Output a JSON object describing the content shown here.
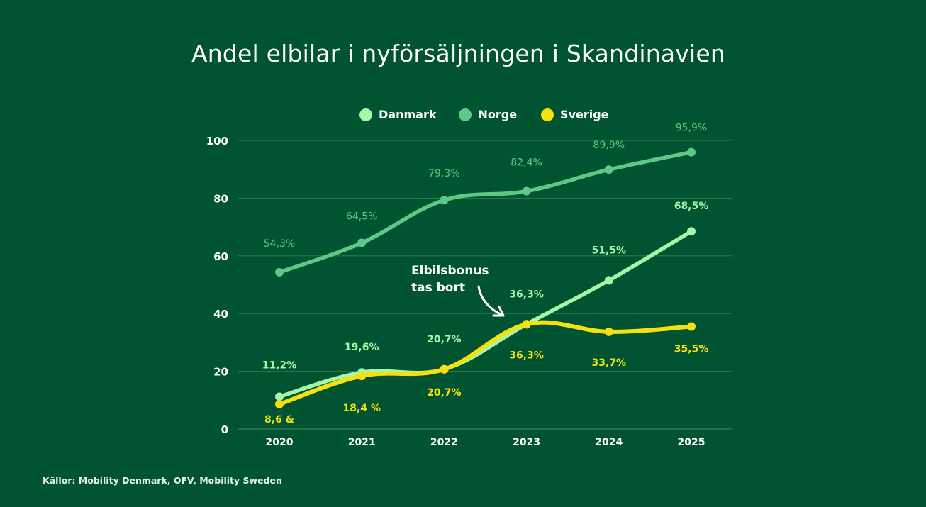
{
  "chart_data": {
    "type": "line",
    "title": "Andel elbilar i nyförsäljningen i Skandinavien",
    "xlabel": "",
    "ylabel": "",
    "categories": [
      "2020",
      "2021",
      "2022",
      "2023",
      "2024",
      "2025"
    ],
    "ylim": [
      0,
      100
    ],
    "yticks": [
      0,
      20,
      40,
      60,
      80,
      100
    ],
    "grid": true,
    "legend_position": "top-center",
    "series": [
      {
        "name": "Danmark",
        "color": "#a8f5a8",
        "values": [
          11.2,
          19.6,
          20.7,
          36.3,
          51.5,
          68.5
        ],
        "labels": [
          "11,2%",
          "19,6%",
          "20,7%",
          "36,3%",
          "51,5%",
          "68,5%"
        ],
        "label_position": "above"
      },
      {
        "name": "Norge",
        "color": "#5dc986",
        "values": [
          54.3,
          64.5,
          79.3,
          82.4,
          89.9,
          95.9
        ],
        "labels": [
          "54,3%",
          "64,5%",
          "79,3%",
          "82,4%",
          "89,9%",
          "95,9%"
        ],
        "label_position": "above"
      },
      {
        "name": "Sverige",
        "color": "#f5e010",
        "values": [
          8.6,
          18.4,
          20.7,
          36.3,
          33.7,
          35.5
        ],
        "labels": [
          "8,6 &",
          "18,4 %",
          "20,7%",
          "36,3%",
          "33,7%",
          "35,5%"
        ],
        "label_position": "below"
      }
    ],
    "annotations": [
      {
        "text_lines": [
          "Elbilsbonus",
          "tas bort"
        ],
        "points_to": {
          "x": "2023",
          "y": 36.3
        },
        "arrow": true
      }
    ]
  },
  "source": "Källor: Mobility Denmark, OFV, Mobility Sweden"
}
